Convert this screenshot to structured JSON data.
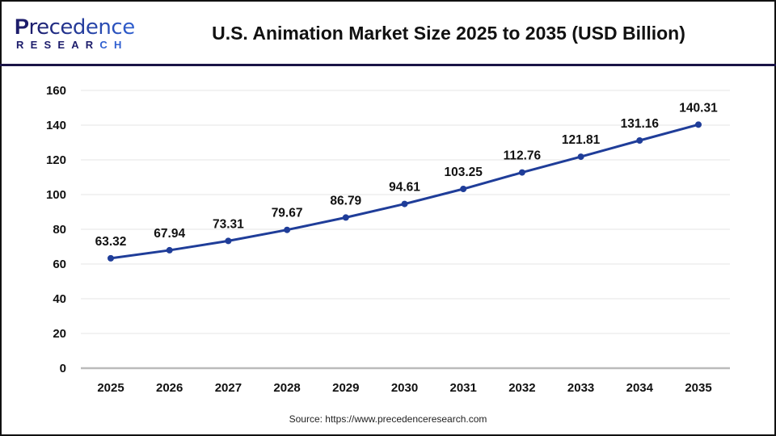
{
  "logo": {
    "brand_initial": "P",
    "brand_rest": "recedence",
    "brand_sub_a": "RESEAR",
    "brand_sub_b": "CH"
  },
  "colors": {
    "line": "#1f3d99",
    "marker": "#1f3d99",
    "grid": "#e6e6e6",
    "axis": "#bbbbbb",
    "divider": "#1a1446"
  },
  "source": "Source: https://www.precedenceresearch.com",
  "chart_data": {
    "type": "line",
    "title": "U.S. Animation Market Size 2025 to 2035 (USD Billion)",
    "xlabel": "",
    "ylabel": "",
    "categories": [
      "2025",
      "2026",
      "2027",
      "2028",
      "2029",
      "2030",
      "2031",
      "2032",
      "2033",
      "2034",
      "2035"
    ],
    "series": [
      {
        "name": "U.S. Animation Market Size",
        "values": [
          63.32,
          67.94,
          73.31,
          79.67,
          86.79,
          94.61,
          103.25,
          112.76,
          121.81,
          131.16,
          140.31
        ]
      }
    ],
    "data_labels": [
      "63.32",
      "67.94",
      "73.31",
      "79.67",
      "86.79",
      "94.61",
      "103.25",
      "112.76",
      "121.81",
      "131.16",
      "140.31"
    ],
    "ylim": [
      0,
      160
    ],
    "yticks": [
      "0",
      "20",
      "40",
      "60",
      "80",
      "100",
      "120",
      "140",
      "160"
    ],
    "grid": true,
    "legend": "none"
  }
}
